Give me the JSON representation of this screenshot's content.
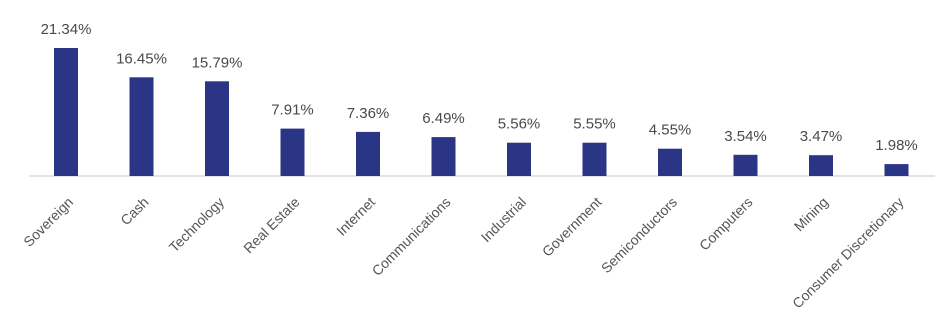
{
  "chart_data": {
    "type": "bar",
    "categories": [
      "Sovereign",
      "Cash",
      "Technology",
      "Real Estate",
      "Internet",
      "Communications",
      "Industrial",
      "Government",
      "Semiconductors",
      "Computers",
      "Mining",
      "Consumer Discretionary"
    ],
    "values": [
      21.34,
      16.45,
      15.79,
      7.91,
      7.36,
      6.49,
      5.56,
      5.55,
      4.55,
      3.54,
      3.47,
      1.98
    ],
    "data_labels": [
      "21.34%",
      "16.45%",
      "15.79%",
      "7.91%",
      "7.36%",
      "6.49%",
      "5.56%",
      "5.55%",
      "4.55%",
      "3.54%",
      "3.47%",
      "1.98%"
    ],
    "bar_color": "#2b3585",
    "axis_color": "#c8c8c8",
    "ylim": [
      0,
      21.34
    ],
    "grid": false,
    "legend": "none"
  }
}
